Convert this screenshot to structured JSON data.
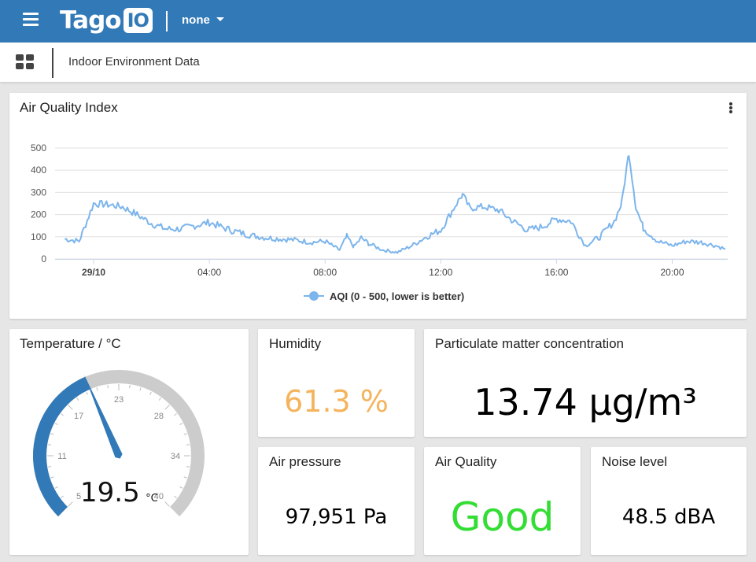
{
  "header": {
    "logo_text": "Tago",
    "logo_badge": "IO",
    "account_label": "none"
  },
  "subbar": {
    "dashboard_title": "Indoor Environment Data"
  },
  "aqi_widget": {
    "title": "Air Quality Index",
    "chart_data": {
      "type": "line",
      "title": "Air Quality Index",
      "series": [
        {
          "name": "AQI (0 - 500, lower is better)",
          "color": "#7cb5ec",
          "x": [
            "23:00",
            "23:30",
            "00:00",
            "00:30",
            "01:00",
            "01:30",
            "02:00",
            "02:30",
            "03:00",
            "03:30",
            "04:00",
            "04:30",
            "05:00",
            "05:30",
            "06:00",
            "06:30",
            "07:00",
            "07:30",
            "08:00",
            "08:15",
            "08:30",
            "08:45",
            "09:00",
            "09:15",
            "09:30",
            "10:00",
            "10:30",
            "11:00",
            "11:30",
            "12:00",
            "12:30",
            "12:45",
            "13:00",
            "13:30",
            "14:00",
            "14:30",
            "15:00",
            "15:30",
            "16:00",
            "16:30",
            "17:00",
            "17:30",
            "18:00",
            "18:15",
            "18:30",
            "18:45",
            "19:00",
            "19:30",
            "20:00",
            "20:30",
            "21:00",
            "21:30",
            "21:50"
          ],
          "values": [
            90,
            80,
            250,
            245,
            235,
            200,
            160,
            135,
            135,
            150,
            165,
            140,
            120,
            105,
            95,
            90,
            85,
            75,
            80,
            60,
            40,
            100,
            55,
            95,
            70,
            40,
            30,
            60,
            100,
            130,
            240,
            290,
            230,
            235,
            220,
            170,
            130,
            145,
            180,
            170,
            60,
            100,
            170,
            250,
            480,
            230,
            140,
            80,
            60,
            80,
            75,
            60,
            45
          ]
        }
      ],
      "x_tick_labels": [
        "29/10",
        "04:00",
        "08:00",
        "12:00",
        "16:00",
        "20:00"
      ],
      "y_tick_labels": [
        "0",
        "100",
        "200",
        "300",
        "400",
        "500"
      ],
      "ylim": [
        0,
        500
      ],
      "grid": true,
      "legend_position": "bottom-center"
    }
  },
  "temperature": {
    "title": "Temperature / °C",
    "value": "19.5",
    "unit": "°C",
    "min": 5,
    "max": 40,
    "current": 19.5,
    "tick_labels": [
      "5",
      "11",
      "17",
      "23",
      "28",
      "34",
      "40"
    ],
    "arc_color": "#3279b7",
    "track_color": "#cccccc"
  },
  "humidity": {
    "title": "Humidity",
    "value": "61.3 %",
    "color": "#f5b35c"
  },
  "particulate": {
    "title": "Particulate matter concentration",
    "value": "13.74 µg/m³"
  },
  "pressure": {
    "title": "Air pressure",
    "value": "97,951 Pa"
  },
  "air_quality": {
    "title": "Air Quality",
    "value": "Good",
    "color": "#33dd33"
  },
  "noise": {
    "title": "Noise level",
    "value": "48.5 dBA"
  }
}
